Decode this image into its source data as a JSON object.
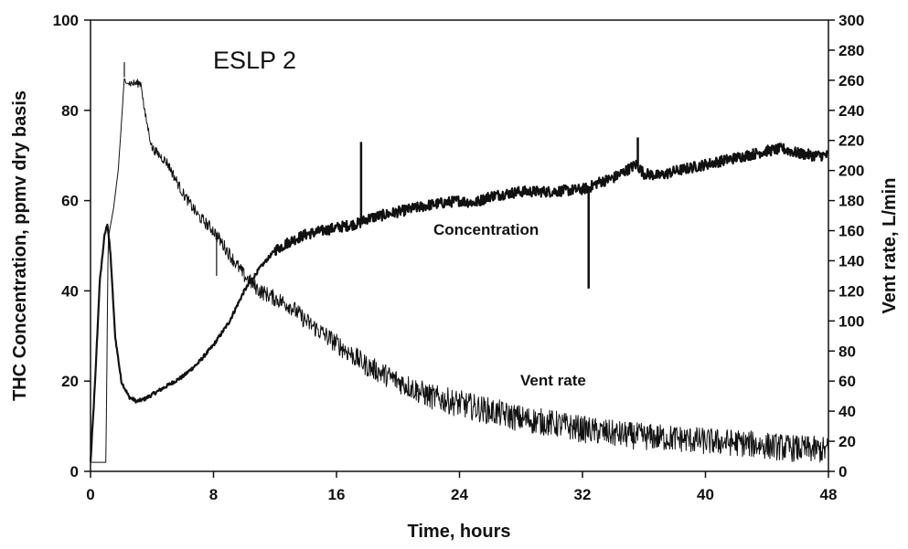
{
  "chart_data": {
    "type": "line",
    "title": "ESLP 2",
    "xlabel": "Time, hours",
    "ylabel": "THC Concentration, ppmv dry basis",
    "y2label": "Vent rate, L/min",
    "xlim": [
      0,
      48
    ],
    "ylim": [
      0,
      100
    ],
    "y2lim": [
      0,
      300
    ],
    "x_ticks": [
      0,
      8,
      16,
      24,
      32,
      40,
      48
    ],
    "y_ticks": [
      0,
      20,
      40,
      60,
      80,
      100
    ],
    "y2_ticks": [
      0,
      20,
      40,
      60,
      80,
      100,
      120,
      140,
      160,
      180,
      200,
      220,
      240,
      260,
      280,
      300
    ],
    "grid": false,
    "series": [
      {
        "name": "Concentration",
        "axis": "left",
        "x": [
          0,
          0.3,
          0.6,
          0.9,
          1.1,
          1.3,
          1.6,
          2.0,
          2.5,
          3.0,
          3.5,
          4.0,
          5.0,
          6.0,
          7.0,
          8.0,
          9.0,
          10.0,
          11.0,
          12.0,
          13.0,
          14.0,
          16.0,
          17.5,
          18.0,
          20.0,
          22.0,
          24.0,
          25.0,
          26.0,
          28.0,
          30.0,
          32.0,
          32.5,
          33.0,
          34.0,
          35.5,
          36.0,
          37.0,
          38.0,
          40.0,
          42.0,
          44.0,
          45.0,
          46.0,
          47.0,
          48.0
        ],
        "values": [
          2,
          20,
          42,
          52,
          55,
          48,
          30,
          20,
          16.5,
          15.5,
          16,
          17,
          19,
          21,
          24,
          28,
          33,
          40,
          45,
          49,
          51,
          52.5,
          54,
          55,
          56,
          57.5,
          59,
          60,
          59.5,
          61,
          62,
          62,
          62.5,
          63,
          64,
          65,
          68,
          66,
          65.5,
          66.5,
          68,
          69.5,
          71,
          71.5,
          70.5,
          70,
          70
        ],
        "spikes": [
          {
            "x": 17.6,
            "value": 73
          },
          {
            "x": 32.4,
            "value": 40.5
          },
          {
            "x": 35.6,
            "value": 74
          }
        ]
      },
      {
        "name": "Vent rate",
        "axis": "right",
        "x": [
          0,
          1.0,
          1.15,
          1.5,
          1.8,
          2.0,
          2.2,
          2.3,
          3.3,
          3.5,
          4.0,
          5.0,
          6.0,
          7.0,
          8.0,
          9.0,
          10.0,
          11.0,
          12.0,
          13.0,
          14.0,
          16.0,
          18.0,
          20.0,
          22.0,
          24.0,
          26.0,
          28.0,
          30.0,
          32.0,
          34.0,
          36.0,
          38.0,
          40.0,
          42.0,
          44.0,
          46.0,
          48.0
        ],
        "values": [
          6,
          6,
          155,
          175,
          200,
          230,
          262,
          258,
          258,
          240,
          215,
          205,
          185,
          170,
          160,
          145,
          130,
          120,
          115,
          110,
          100,
          85,
          70,
          60,
          50,
          45,
          40,
          35,
          32,
          28,
          25,
          23,
          22,
          20,
          19,
          17,
          15,
          14
        ],
        "spikes": [
          {
            "x": 2.2,
            "value": 272
          },
          {
            "x": 8.2,
            "value": 130
          }
        ]
      }
    ],
    "annotations": [
      "Concentration",
      "Vent rate"
    ]
  }
}
